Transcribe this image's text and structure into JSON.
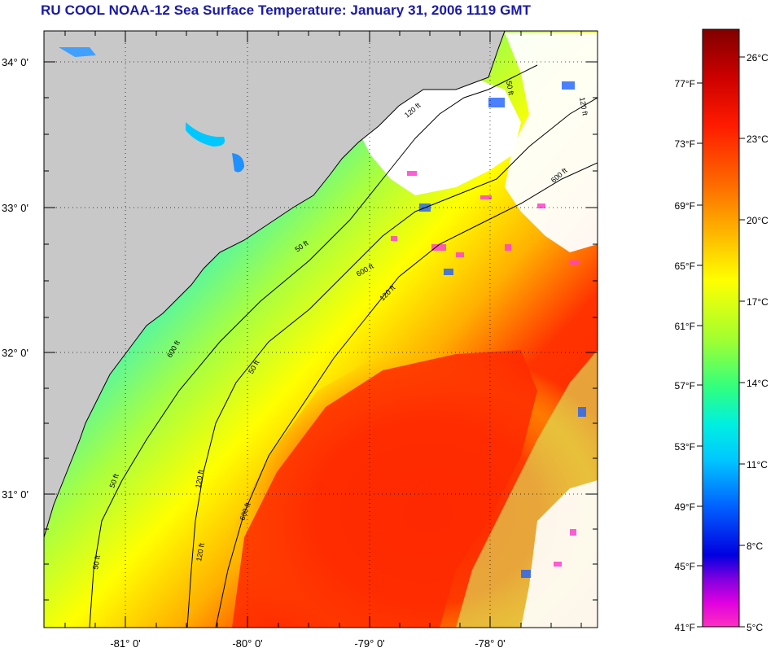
{
  "title": "RU COOL  NOAA-12  Sea Surface Temperature:  January 31, 2006 1119 GMT",
  "map": {
    "lat_labels": [
      "34° 0'",
      "33° 0'",
      "32° 0'",
      "31° 0'"
    ],
    "lon_labels": [
      "-81° 0'",
      "-80° 0'",
      "-79° 0'",
      "-78° 0'"
    ],
    "contour_labels": [
      "50 ft",
      "120 ft",
      "600 ft",
      "50 ft",
      "120 ft",
      "600 ft",
      "50 ft",
      "120 ft",
      "600 ft",
      "50 ft",
      "120 ft",
      "50 ft",
      "120 ft",
      "600 ft"
    ],
    "colors": {
      "land": "#c8c8c8",
      "cloud": "#ffffff",
      "warm": "#ff2200",
      "cool": "#00e5ff"
    }
  },
  "colorbar": {
    "fahrenheit_labels": [
      "77°F",
      "73°F",
      "69°F",
      "65°F",
      "61°F",
      "57°F",
      "53°F",
      "49°F",
      "45°F",
      "41°F"
    ],
    "celsius_labels": [
      "26°C",
      "23°C",
      "20°C",
      "17°C",
      "14°C",
      "11°C",
      "8°C",
      "5°C"
    ]
  }
}
